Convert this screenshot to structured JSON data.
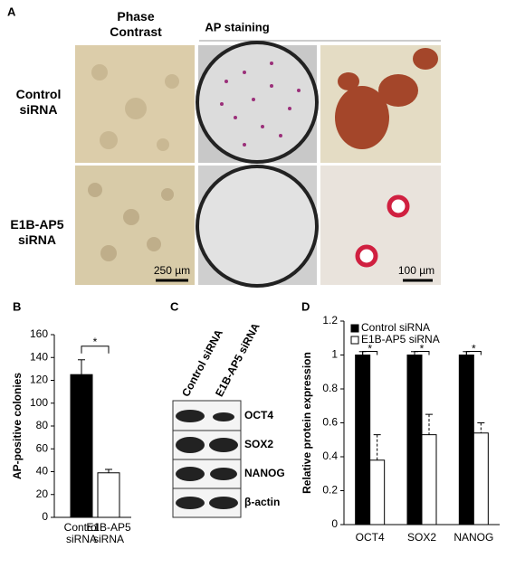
{
  "panels": {
    "a": "A",
    "b": "B",
    "c": "C",
    "d": "D"
  },
  "panel_a": {
    "col_phase": "Phase Contrast",
    "col_ap": "AP staining",
    "row_control": "Control siRNA",
    "row_kd": "E1B-AP5 siRNA",
    "scale_1": "250 µm",
    "scale_2": "100 µm"
  },
  "panel_c": {
    "lanes": [
      "Control siRNA",
      "E1B-AP5 siRNA"
    ],
    "bands": [
      "OCT4",
      "SOX2",
      "NANOG",
      "β-actin"
    ]
  },
  "chart_data": [
    {
      "type": "bar",
      "ylabel": "AP-positive colonies",
      "categories": [
        "Control siRNA",
        "E1B-AP5 siRNA"
      ],
      "values": [
        125,
        39
      ],
      "errors": [
        13,
        3
      ],
      "colors": [
        "#000000",
        "#ffffff"
      ],
      "ylim": [
        0,
        160
      ],
      "yticks": [
        0,
        20,
        40,
        60,
        80,
        100,
        120,
        140,
        160
      ],
      "annotations": [
        "*"
      ]
    },
    {
      "type": "grouped-bar",
      "ylabel": "Relative protein expression",
      "categories": [
        "OCT4",
        "SOX2",
        "NANOG"
      ],
      "series": [
        {
          "name": "Control siRNA",
          "color": "#000000",
          "values": [
            1,
            1,
            1
          ],
          "errors": [
            0.02,
            0.02,
            0.02
          ]
        },
        {
          "name": "E1B-AP5 siRNA",
          "color": "#ffffff",
          "values": [
            0.38,
            0.53,
            0.54
          ],
          "errors": [
            0.15,
            0.12,
            0.06
          ]
        }
      ],
      "ylim": [
        0,
        1.2
      ],
      "yticks": [
        0,
        0.2,
        0.4,
        0.6,
        0.8,
        1,
        1.2
      ],
      "legend": "upper-left",
      "annotations": [
        "*",
        "*",
        "*"
      ]
    }
  ]
}
